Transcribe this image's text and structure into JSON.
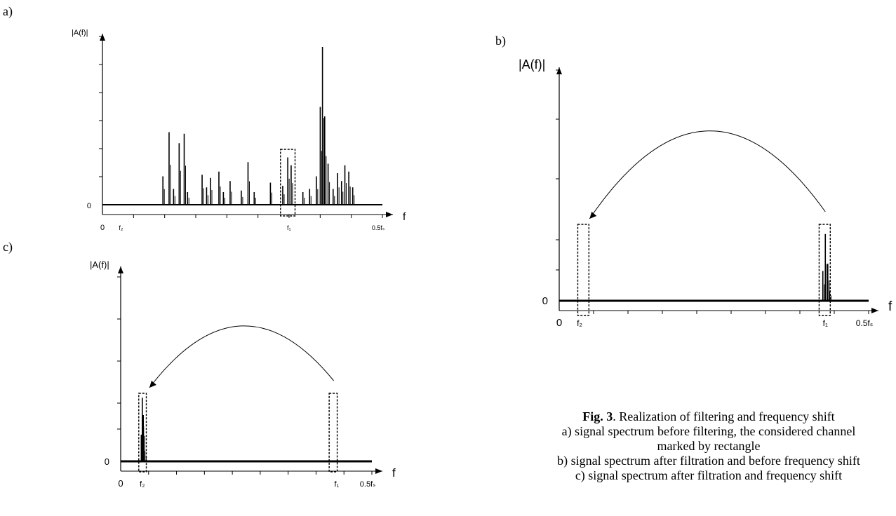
{
  "figure": {
    "panel_labels": {
      "a": "a)",
      "b": "b)",
      "c": "c)"
    },
    "caption": {
      "number": "Fig. 3",
      "title": ". Realization of filtering and frequency shift",
      "line_a1": "a) signal spectrum before filtering, the considered channel",
      "line_a2": "marked by rectangle",
      "line_b": "b) signal spectrum after filtration and before frequency shift",
      "line_c": "c) signal spectrum after filtration and frequency shift"
    }
  },
  "chart_data": [
    {
      "id": "a",
      "type": "line",
      "ylabel": "|A(f)|",
      "xlabel": "f",
      "x_ticks": [
        "0",
        "f₂",
        "f₁",
        "0.5fₛ"
      ],
      "y_ticks": [
        "0"
      ],
      "x_range": [
        0,
        0.5
      ],
      "y_range": [
        0,
        1
      ],
      "markers": {
        "f2": 0.033,
        "f1": 0.333
      },
      "filter_window": [
        0.318,
        0.344
      ],
      "peaks": [
        {
          "x": 0.108,
          "y": 0.18
        },
        {
          "x": 0.119,
          "y": 0.46
        },
        {
          "x": 0.127,
          "y": 0.1
        },
        {
          "x": 0.137,
          "y": 0.39
        },
        {
          "x": 0.146,
          "y": 0.45
        },
        {
          "x": 0.152,
          "y": 0.08
        },
        {
          "x": 0.178,
          "y": 0.19
        },
        {
          "x": 0.186,
          "y": 0.11
        },
        {
          "x": 0.193,
          "y": 0.17
        },
        {
          "x": 0.208,
          "y": 0.21
        },
        {
          "x": 0.216,
          "y": 0.08
        },
        {
          "x": 0.228,
          "y": 0.15
        },
        {
          "x": 0.248,
          "y": 0.09
        },
        {
          "x": 0.26,
          "y": 0.27
        },
        {
          "x": 0.271,
          "y": 0.08
        },
        {
          "x": 0.3,
          "y": 0.14
        },
        {
          "x": 0.322,
          "y": 0.12
        },
        {
          "x": 0.331,
          "y": 0.3
        },
        {
          "x": 0.337,
          "y": 0.25
        },
        {
          "x": 0.358,
          "y": 0.08
        },
        {
          "x": 0.37,
          "y": 0.1
        },
        {
          "x": 0.382,
          "y": 0.18
        },
        {
          "x": 0.389,
          "y": 0.62
        },
        {
          "x": 0.393,
          "y": 1.0
        },
        {
          "x": 0.397,
          "y": 0.56
        },
        {
          "x": 0.403,
          "y": 0.26
        },
        {
          "x": 0.412,
          "y": 0.1
        },
        {
          "x": 0.42,
          "y": 0.2
        },
        {
          "x": 0.427,
          "y": 0.15
        },
        {
          "x": 0.433,
          "y": 0.25
        },
        {
          "x": 0.44,
          "y": 0.21
        },
        {
          "x": 0.447,
          "y": 0.11
        }
      ]
    },
    {
      "id": "b",
      "type": "line",
      "ylabel": "|A(f)|",
      "xlabel": "f",
      "x_ticks": [
        "0",
        "f₂",
        "f₁",
        "0.5fₛ"
      ],
      "y_ticks": [
        "0"
      ],
      "x_range": [
        0,
        0.5
      ],
      "y_range": [
        0,
        1
      ],
      "markers": {
        "f2": 0.033,
        "f1": 0.43
      },
      "filter_windows": [
        [
          0.03,
          0.048
        ],
        [
          0.42,
          0.438
        ]
      ],
      "shift_from": 0.43,
      "shift_to": 0.04,
      "peaks": [
        {
          "x": 0.426,
          "y": 0.25
        },
        {
          "x": 0.43,
          "y": 0.56
        },
        {
          "x": 0.434,
          "y": 0.31
        },
        {
          "x": 0.437,
          "y": 0.08
        }
      ]
    },
    {
      "id": "c",
      "type": "line",
      "ylabel": "|A(f)|",
      "xlabel": "f",
      "x_ticks": [
        "0",
        "f₂",
        "f₁",
        "0.5fₛ"
      ],
      "y_ticks": [
        "0"
      ],
      "x_range": [
        0,
        0.5
      ],
      "y_range": [
        0,
        1
      ],
      "markers": {
        "f2": 0.043,
        "f1": 0.43
      },
      "filter_windows": [
        [
          0.036,
          0.051
        ],
        [
          0.415,
          0.431
        ]
      ],
      "shift_from": 0.424,
      "shift_to": 0.046,
      "peaks": [
        {
          "x": 0.041,
          "y": 0.23
        },
        {
          "x": 0.043,
          "y": 0.55
        },
        {
          "x": 0.045,
          "y": 0.4
        },
        {
          "x": 0.048,
          "y": 0.09
        }
      ]
    }
  ]
}
